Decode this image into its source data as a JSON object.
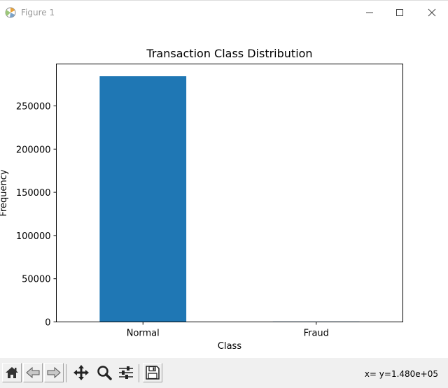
{
  "window": {
    "title": "Figure 1",
    "controls": [
      "minimize",
      "maximize",
      "close"
    ]
  },
  "toolbar": {
    "buttons": [
      "home-icon",
      "back-arrow-icon",
      "forward-arrow-icon",
      "move-arrows-icon",
      "zoom-magnifier-icon",
      "configure-subplots-icon",
      "save-disk-icon"
    ],
    "coordinates": "x= y=1.480e+05"
  },
  "colors": {
    "bar": "#1f77b4",
    "toolbar_bg": "#f0f0f0"
  },
  "chart_data": {
    "type": "bar",
    "title": "Transaction Class Distribution",
    "xlabel": "Class",
    "ylabel": "Frequency",
    "categories": [
      "Normal",
      "Fraud"
    ],
    "values": [
      284315,
      492
    ],
    "ylim": [
      0,
      298530
    ],
    "yticks": [
      0,
      50000,
      100000,
      150000,
      200000,
      250000
    ],
    "ytick_labels": [
      "0",
      "50000",
      "100000",
      "150000",
      "200000",
      "250000"
    ],
    "grid": false,
    "legend": "none"
  }
}
